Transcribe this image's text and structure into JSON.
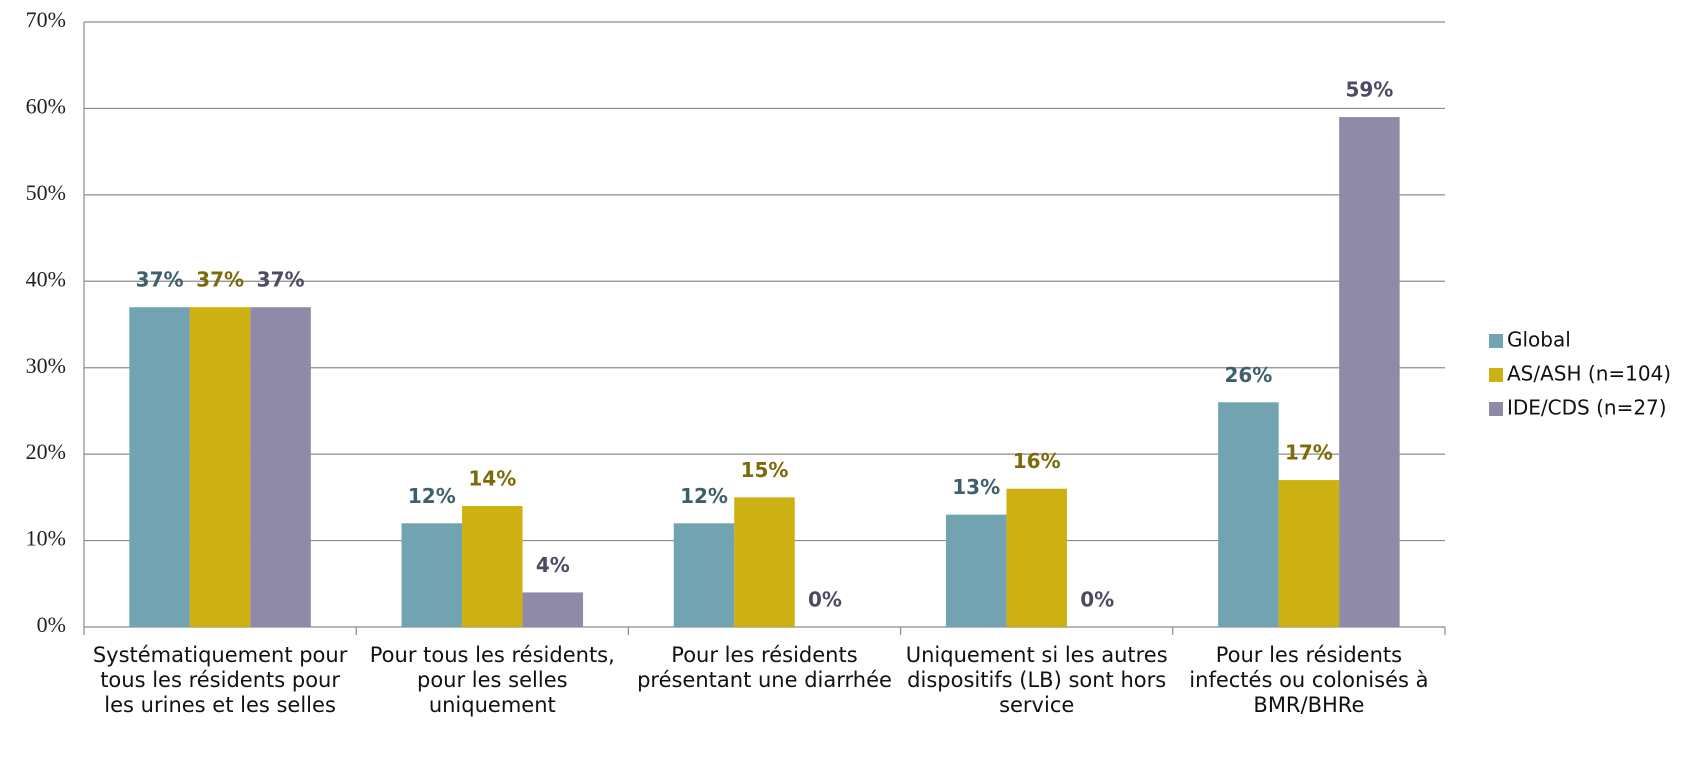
{
  "chart_data": {
    "type": "bar",
    "categories": [
      "Systématiquement pour tous les résidents pour les urines et les selles",
      "Pour tous les résidents, pour les selles uniquement",
      "Pour les résidents présentant une diarrhée",
      "Uniquement si les autres dispositifs (LB) sont hors service",
      "Pour les résidents infectés ou colonisés à BMR/BHRe"
    ],
    "series": [
      {
        "name": "Global",
        "color": "#71a3b0",
        "label_color": "#3e5f6b",
        "values": [
          37,
          12,
          12,
          13,
          26
        ],
        "value_labels": [
          "37%",
          "12%",
          "12%",
          "13%",
          "26%"
        ]
      },
      {
        "name": "AS/ASH (n=104)",
        "color": "#cdb011",
        "label_color": "#7d6a08",
        "values": [
          37,
          14,
          15,
          16,
          17
        ],
        "value_labels": [
          "37%",
          "14%",
          "15%",
          "16%",
          "17%"
        ]
      },
      {
        "name": "IDE/CDS (n=27)",
        "color": "#8f8aa8",
        "label_color": "#4d4a62",
        "values": [
          37,
          4,
          0,
          0,
          59
        ],
        "value_labels": [
          "37%",
          "4%",
          "0%",
          "0%",
          "59%"
        ]
      }
    ],
    "ylim": [
      0,
      70
    ],
    "yticks": [
      {
        "value": 0,
        "label": "0%"
      },
      {
        "value": 10,
        "label": "10%"
      },
      {
        "value": 20,
        "label": "20%"
      },
      {
        "value": 30,
        "label": "30%"
      },
      {
        "value": 40,
        "label": "40%"
      },
      {
        "value": 50,
        "label": "50%"
      },
      {
        "value": 60,
        "label": "60%"
      },
      {
        "value": 70,
        "label": "70%"
      }
    ],
    "grid": true,
    "legend": "right"
  }
}
